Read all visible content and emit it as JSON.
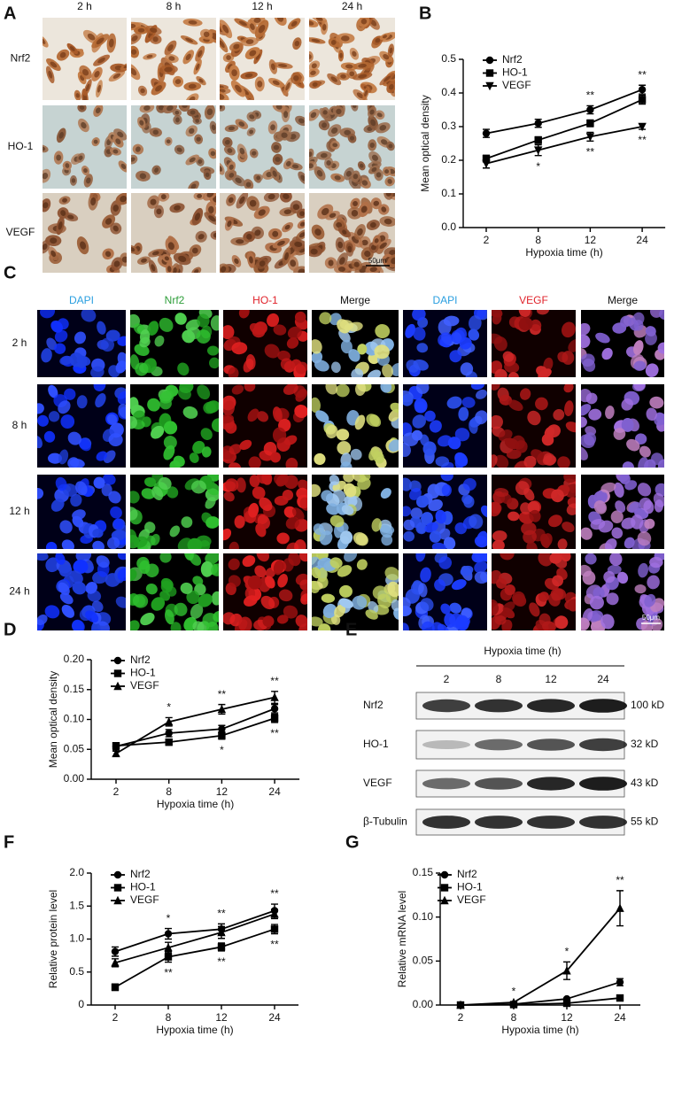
{
  "panel_a": {
    "letter": "A",
    "columns": [
      "2 h",
      "8 h",
      "12 h",
      "24 h"
    ],
    "rows": [
      "Nrf2",
      "HO-1",
      "VEGF"
    ],
    "scale_bar": "50μm"
  },
  "panel_c": {
    "letter": "C",
    "columns": [
      "DAPI",
      "Nrf2",
      "HO-1",
      "Merge",
      "DAPI",
      "VEGF",
      "Merge"
    ],
    "column_colors": [
      "#2a9fe0",
      "#2e9e3a",
      "#e0222a",
      "#111111",
      "#2a9fe0",
      "#e0222a",
      "#111111"
    ],
    "rows": [
      "2 h",
      "8 h",
      "12 h",
      "24 h"
    ],
    "scale_bar": "50μm"
  },
  "panel_e": {
    "letter": "E",
    "title": "Hypoxia time (h)",
    "lanes": [
      "2",
      "8",
      "12",
      "24"
    ],
    "rows": [
      {
        "label": "Nrf2",
        "size": "100 kD"
      },
      {
        "label": "HO-1",
        "size": "32 kD"
      },
      {
        "label": "VEGF",
        "size": "43 kD"
      },
      {
        "label": "β-Tubulin",
        "size": "55 kD"
      }
    ]
  },
  "chart_data": [
    {
      "type": "line",
      "panel": "B",
      "x_label": "Hypoxia time (h)",
      "y_label": "Mean optical density",
      "categories": [
        "2",
        "8",
        "12",
        "24"
      ],
      "ylim": [
        0,
        0.5
      ],
      "yticks": [
        {
          "value": 0,
          "label": "0.0"
        },
        0.1,
        0.2,
        0.3,
        0.4,
        0.5
      ],
      "series": [
        {
          "name": "Nrf2",
          "color": "#000000",
          "marker": "circle",
          "values": [
            0.28,
            0.31,
            0.35,
            0.41
          ],
          "errors": [
            0.012,
            0.012,
            0.012,
            0.013
          ]
        },
        {
          "name": "HO-1",
          "color": "#000000",
          "marker": "square",
          "values": [
            0.205,
            0.26,
            0.31,
            0.38
          ],
          "errors": [
            0.01,
            0.01,
            0.01,
            0.013
          ]
        },
        {
          "name": "VEGF",
          "color": "#000000",
          "marker": "triangle-down",
          "values": [
            0.19,
            0.23,
            0.27,
            0.3
          ],
          "errors": [
            0.013,
            0.016,
            0.013,
            0.008
          ]
        }
      ],
      "annotations": [
        {
          "text": "**",
          "series": "Nrf2",
          "category": "12"
        },
        {
          "text": "**",
          "series": "Nrf2",
          "category": "24"
        },
        {
          "text": "*",
          "series": "VEGF",
          "category": "8"
        },
        {
          "text": "**",
          "series": "VEGF",
          "category": "12"
        },
        {
          "text": "**",
          "series": "VEGF",
          "category": "24"
        }
      ]
    },
    {
      "type": "line",
      "panel": "D",
      "x_label": "Hypoxia time (h)",
      "y_label": "Mean optical density",
      "categories": [
        "2",
        "8",
        "12",
        "24"
      ],
      "ylim": [
        0,
        0.2
      ],
      "yticks": [
        {
          "value": 0,
          "label": "0.00"
        },
        0.05,
        {
          "value": 0.1,
          "label": "0.10"
        },
        0.15,
        {
          "value": 0.2,
          "label": "0.20"
        }
      ],
      "series": [
        {
          "name": "Nrf2",
          "color": "#000000",
          "marker": "circle",
          "values": [
            0.055,
            0.077,
            0.084,
            0.118
          ],
          "errors": [
            0.006,
            0.006,
            0.006,
            0.007
          ]
        },
        {
          "name": "HO-1",
          "color": "#000000",
          "marker": "square",
          "values": [
            0.056,
            0.062,
            0.073,
            0.102
          ],
          "errors": [
            0.005,
            0.005,
            0.006,
            0.007
          ]
        },
        {
          "name": "VEGF",
          "color": "#000000",
          "marker": "triangle",
          "values": [
            0.043,
            0.096,
            0.117,
            0.137
          ],
          "errors": [
            0.004,
            0.007,
            0.008,
            0.01
          ]
        }
      ],
      "annotations": [
        {
          "text": "*",
          "series": "VEGF",
          "category": "8"
        },
        {
          "text": "**",
          "series": "VEGF",
          "category": "12"
        },
        {
          "text": "**",
          "series": "VEGF",
          "category": "24"
        },
        {
          "text": "*",
          "series": "HO-1",
          "category": "12"
        },
        {
          "text": "**",
          "series": "HO-1",
          "category": "24"
        }
      ]
    },
    {
      "type": "line",
      "panel": "F",
      "x_label": "Hypoxia time (h)",
      "y_label": "Relative protein level",
      "categories": [
        "2",
        "8",
        "12",
        "24"
      ],
      "ylim": [
        0,
        2
      ],
      "yticks": [
        0,
        0.5,
        {
          "value": 1,
          "label": "1.0"
        },
        1.5,
        {
          "value": 2,
          "label": "2.0"
        }
      ],
      "series": [
        {
          "name": "Nrf2",
          "color": "#000000",
          "marker": "circle",
          "values": [
            0.81,
            1.08,
            1.15,
            1.43
          ],
          "errors": [
            0.07,
            0.08,
            0.08,
            0.1
          ]
        },
        {
          "name": "HO-1",
          "color": "#000000",
          "marker": "square",
          "values": [
            0.27,
            0.73,
            0.88,
            1.15
          ],
          "errors": [
            0.05,
            0.08,
            0.06,
            0.07
          ]
        },
        {
          "name": "VEGF",
          "color": "#000000",
          "marker": "triangle",
          "values": [
            0.64,
            0.87,
            1.1,
            1.38
          ],
          "errors": [
            0.06,
            0.08,
            0.09,
            0.07
          ]
        }
      ],
      "annotations": [
        {
          "text": "*",
          "series": "Nrf2",
          "category": "8"
        },
        {
          "text": "**",
          "series": "Nrf2",
          "category": "12"
        },
        {
          "text": "**",
          "series": "Nrf2",
          "category": "24"
        },
        {
          "text": "**",
          "series": "HO-1",
          "category": "8"
        },
        {
          "text": "**",
          "series": "HO-1",
          "category": "12"
        },
        {
          "text": "**",
          "series": "HO-1",
          "category": "24"
        }
      ]
    },
    {
      "type": "line",
      "panel": "G",
      "x_label": "Hypoxia time (h)",
      "y_label": "Relative mRNA level",
      "categories": [
        "2",
        "8",
        "12",
        "24"
      ],
      "ylim": [
        0,
        0.15
      ],
      "yticks": [
        {
          "value": 0,
          "label": "0.00"
        },
        0.05,
        {
          "value": 0.1,
          "label": "0.10"
        },
        0.15
      ],
      "series": [
        {
          "name": "Nrf2",
          "color": "#000000",
          "marker": "circle",
          "values": [
            0,
            0.001,
            0.007,
            0.026
          ],
          "errors": [
            0,
            0.0005,
            0.001,
            0.004
          ]
        },
        {
          "name": "HO-1",
          "color": "#000000",
          "marker": "square",
          "values": [
            0,
            0.0005,
            0.002,
            0.008
          ],
          "errors": [
            0,
            0.0003,
            0.0005,
            0.001
          ]
        },
        {
          "name": "VEGF",
          "color": "#000000",
          "marker": "triangle",
          "values": [
            0,
            0.003,
            0.039,
            0.11
          ],
          "errors": [
            0,
            0.0008,
            0.01,
            0.02
          ]
        }
      ],
      "annotations": [
        {
          "text": "*",
          "series": "VEGF",
          "category": "8"
        },
        {
          "text": "*",
          "series": "VEGF",
          "category": "12"
        },
        {
          "text": "**",
          "series": "VEGF",
          "category": "24"
        }
      ]
    }
  ]
}
